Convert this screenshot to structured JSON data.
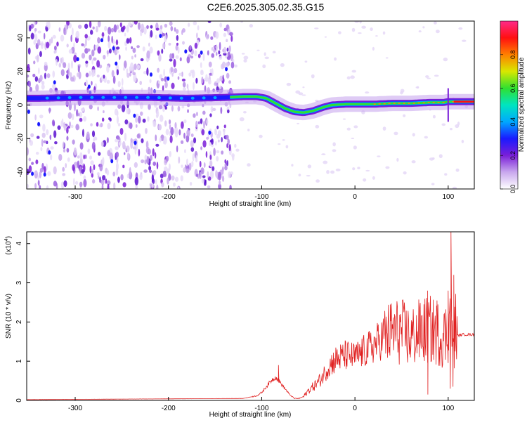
{
  "page_title": "C2E6.2025.305.02.35.G15",
  "chart_data": [
    {
      "type": "heatmap",
      "xlabel": "Height of straight line (km)",
      "ylabel": "Frequency (Hz)",
      "xlim": [
        -352,
        128
      ],
      "ylim": [
        -50,
        50
      ],
      "x_ticks": [
        -300,
        -200,
        -100,
        0,
        100
      ],
      "y_ticks": [
        -40,
        -20,
        0,
        20,
        40
      ],
      "colorbar": {
        "label": "Normalized spectral amplitude",
        "range": [
          0,
          1
        ],
        "ticks": [
          0.0,
          0.2,
          0.4,
          0.6,
          0.8
        ],
        "colors": [
          "#ffffff",
          "#c9a8ee",
          "#7a1fd8",
          "#1a1aff",
          "#00a8ff",
          "#00e5c0",
          "#30e030",
          "#d8e800",
          "#ff8000",
          "#ff1010",
          "#ff2a8a"
        ]
      },
      "ridge": {
        "x": [
          -340,
          -300,
          -260,
          -220,
          -180,
          -140,
          -120,
          -105,
          -95,
          -85,
          -75,
          -65,
          -55,
          -45,
          -35,
          -25,
          -10,
          0,
          20,
          40,
          60,
          80,
          95,
          100,
          110,
          128
        ],
        "y": [
          4,
          4.5,
          4.5,
          4.5,
          4,
          4.5,
          5,
          5,
          4,
          1,
          -2,
          -4,
          -4.5,
          -3.5,
          -1.5,
          0,
          0.5,
          0.5,
          0.5,
          1,
          1,
          1.5,
          1.5,
          2,
          2,
          2
        ]
      },
      "noise_region_x": [
        -352,
        -130
      ]
    },
    {
      "type": "line",
      "xlabel": "Height of straight line (km)",
      "ylabel": "SNR (10 * v/v)",
      "yscale_label": "(x10",
      "yscale_exponent": "4",
      "xlim": [
        -352,
        128
      ],
      "ylim": [
        0,
        4.3
      ],
      "x_ticks": [
        -300,
        -200,
        -100,
        0,
        100
      ],
      "y_ticks": [
        0,
        1,
        2,
        3,
        4
      ],
      "line_color": "#e02020",
      "envelope": {
        "x": [
          -352,
          -200,
          -120,
          -105,
          -100,
          -95,
          -90,
          -85,
          -80,
          -75,
          -70,
          -65,
          -60,
          -55,
          -50,
          -45,
          -40,
          -35,
          -30,
          -25,
          -20,
          -10,
          0,
          10,
          20,
          30,
          40,
          50,
          60,
          70,
          80,
          90,
          95,
          100,
          103,
          105,
          108,
          110,
          115,
          128
        ],
        "y": [
          0.02,
          0.04,
          0.05,
          0.12,
          0.2,
          0.35,
          0.5,
          0.6,
          0.45,
          0.3,
          0.15,
          0.05,
          0.05,
          0.1,
          0.25,
          0.35,
          0.45,
          0.6,
          0.8,
          0.95,
          1.05,
          1.15,
          1.1,
          1.25,
          1.4,
          1.6,
          1.75,
          1.75,
          1.6,
          1.75,
          1.8,
          1.7,
          1.6,
          1.8,
          2.2,
          1.2,
          1.9,
          1.65,
          1.68,
          1.68
        ]
      },
      "spikes": {
        "x": [
          -82,
          72,
          78,
          88,
          100,
          103,
          106
        ],
        "y": [
          0.9,
          2.1,
          2.8,
          2.55,
          2.8,
          4.3,
          3.2
        ]
      },
      "dips": {
        "x": [
          78,
          102,
          105
        ],
        "y": [
          0.15,
          0.3,
          0.35
        ]
      }
    }
  ]
}
